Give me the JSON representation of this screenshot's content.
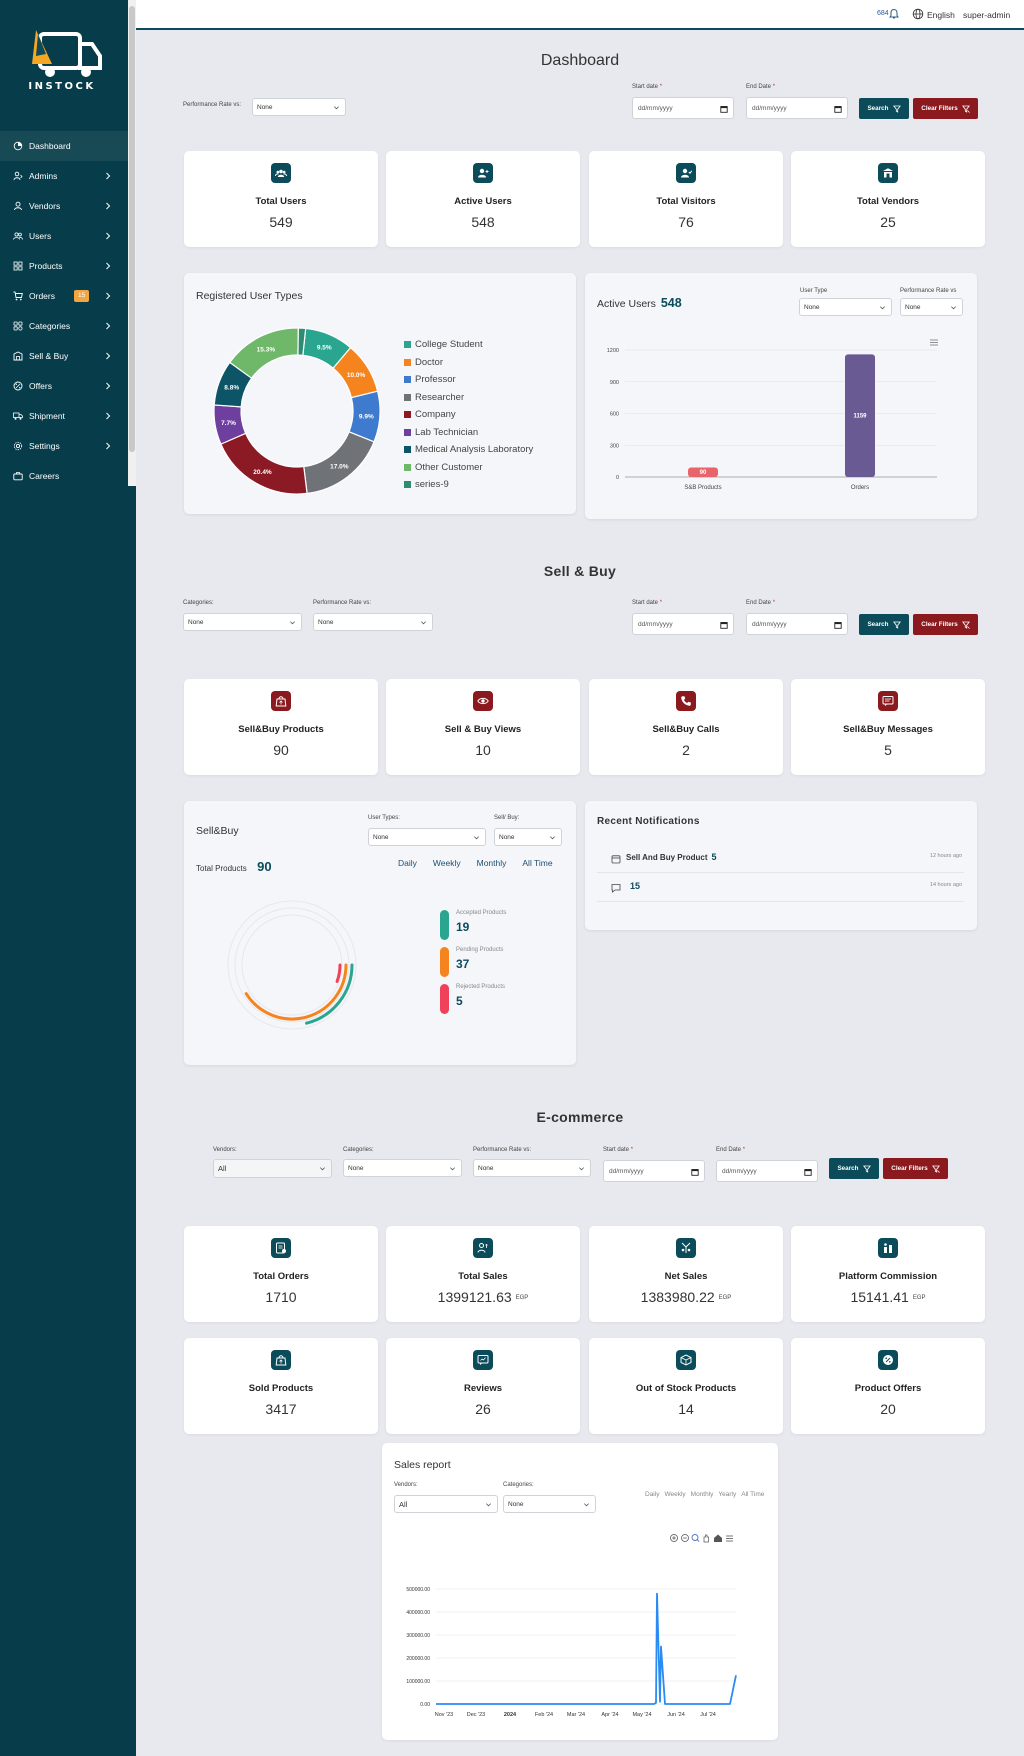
{
  "brand": {
    "name": "INSTOCK"
  },
  "sidebar": {
    "items": [
      {
        "label": "Dashboard",
        "icon": "dashboard-icon",
        "active": true
      },
      {
        "label": "Admins",
        "icon": "admin-icon"
      },
      {
        "label": "Vendors",
        "icon": "vendor-icon"
      },
      {
        "label": "Users",
        "icon": "users-icon"
      },
      {
        "label": "Products",
        "icon": "products-icon"
      },
      {
        "label": "Orders",
        "icon": "cart-icon",
        "badge": "15"
      },
      {
        "label": "Categories",
        "icon": "categories-icon"
      },
      {
        "label": "Sell & Buy",
        "icon": "sellbuy-icon"
      },
      {
        "label": "Offers",
        "icon": "offers-icon"
      },
      {
        "label": "Shipment",
        "icon": "truck-icon"
      },
      {
        "label": "Settings",
        "icon": "gear-icon"
      },
      {
        "label": "Careers",
        "icon": "briefcase-icon"
      }
    ]
  },
  "topbar": {
    "notification_count": "684",
    "language": "English",
    "user": "super-admin"
  },
  "dashboard": {
    "title": "Dashboard",
    "filters": {
      "performance_label": "Performance Rate vs:",
      "performance_value": "None",
      "start_label": "Start date",
      "end_label": "End Date",
      "date_placeholder": "dd/mm/yyyy",
      "search_label": "Search",
      "clear_label": "Clear Filters"
    },
    "stats": [
      {
        "title": "Total Users",
        "value": "549",
        "icon": "users-group-icon"
      },
      {
        "title": "Active Users",
        "value": "548",
        "icon": "user-active-icon"
      },
      {
        "title": "Total Visitors",
        "value": "76",
        "icon": "visitor-icon"
      },
      {
        "title": "Total Vendors",
        "value": "25",
        "icon": "store-icon"
      }
    ],
    "user_types": {
      "title": "Registered User Types",
      "legend": [
        "College Student",
        "Doctor",
        "Professor",
        "Researcher",
        "Company",
        "Lab Technician",
        "Medical Analysis Laboratory",
        "Other Customer",
        "series-9"
      ],
      "colors": [
        "#2aa58f",
        "#f5841f",
        "#3e7bcf",
        "#6f7276",
        "#8b1a24",
        "#6f3fa0",
        "#0d5566",
        "#6fb86a",
        "#2f8c73"
      ]
    },
    "active_users": {
      "title": "Active Users",
      "count": "548",
      "user_type_label": "User Type",
      "user_type_value": "None",
      "perf_label": "Performance Rate vs",
      "perf_value": "None"
    }
  },
  "sellbuy": {
    "title": "Sell & Buy",
    "filters": {
      "categories_label": "Categories:",
      "categories_value": "None",
      "performance_label": "Performance Rate vs:",
      "performance_value": "None",
      "start_label": "Start date",
      "end_label": "End Date",
      "date_placeholder": "dd/mm/yyyy",
      "search_label": "Search",
      "clear_label": "Clear Filters"
    },
    "stats": [
      {
        "title": "Sell&Buy Products",
        "value": "90",
        "icon": "bag-icon"
      },
      {
        "title": "Sell & Buy Views",
        "value": "10",
        "icon": "eye-icon"
      },
      {
        "title": "Sell&Buy Calls",
        "value": "2",
        "icon": "phone-icon"
      },
      {
        "title": "Sell&Buy Messages",
        "value": "5",
        "icon": "message-icon"
      }
    ],
    "panel": {
      "title": "Sell&Buy",
      "total_label": "Total Products",
      "total_value": "90",
      "user_types_label": "User Types:",
      "user_types_value": "None",
      "sellbuy_label": "Sell/ Buy:",
      "sellbuy_value": "None",
      "tabs": [
        "Daily",
        "Weekly",
        "Monthly",
        "All Time"
      ],
      "active_tab": "All Time",
      "items": [
        {
          "label": "Accepted Products",
          "value": "19",
          "color": "#2aa58f"
        },
        {
          "label": "Pending Products",
          "value": "37",
          "color": "#f5841f"
        },
        {
          "label": "Rejected Products",
          "value": "5",
          "color": "#f0415b"
        }
      ]
    },
    "notifications": {
      "title": "Recent Notifications",
      "items": [
        {
          "text": "Sell And Buy Product",
          "count": "5",
          "time": "12 hours ago",
          "icon": "calendar-icon"
        },
        {
          "text": "",
          "count": "15",
          "time": "14 hours ago",
          "icon": "chat-icon"
        }
      ]
    }
  },
  "ecommerce": {
    "title": "E-commerce",
    "filters": {
      "vendors_label": "Vendors:",
      "vendors_value": "All",
      "categories_label": "Categories:",
      "categories_value": "None",
      "performance_label": "Performance Rate vs:",
      "performance_value": "None",
      "start_label": "Start date",
      "end_label": "End Date",
      "date_placeholder": "dd/mm/yyyy",
      "search_label": "Search",
      "clear_label": "Clear Filters"
    },
    "stats": [
      {
        "title": "Total Orders",
        "value": "1710",
        "unit": "",
        "icon": "orders-icon"
      },
      {
        "title": "Total Sales",
        "value": "1399121.63",
        "unit": "EGP",
        "icon": "sales-icon"
      },
      {
        "title": "Net Sales",
        "value": "1383980.22",
        "unit": "EGP",
        "icon": "net-sales-icon"
      },
      {
        "title": "Platform Commission",
        "value": "15141.41",
        "unit": "EGP",
        "icon": "commission-icon"
      },
      {
        "title": "Sold Products",
        "value": "3417",
        "unit": "",
        "icon": "bag-icon"
      },
      {
        "title": "Reviews",
        "value": "26",
        "unit": "",
        "icon": "review-icon"
      },
      {
        "title": "Out of Stock Products",
        "value": "14",
        "unit": "",
        "icon": "box-icon"
      },
      {
        "title": "Product Offers",
        "value": "20",
        "unit": "",
        "icon": "percent-icon"
      }
    ],
    "sales_report": {
      "title": "Sales report",
      "vendors_label": "Vendors:",
      "vendors_value": "All",
      "categories_label": "Categories:",
      "categories_value": "None",
      "tabs": [
        "Daily",
        "Weekly",
        "Monthly",
        "Yearly",
        "All Time"
      ]
    }
  },
  "chart_data": [
    {
      "type": "pie",
      "title": "Registered User Types",
      "categories": [
        "College Student",
        "Doctor",
        "Professor",
        "Researcher",
        "Company",
        "Lab Technician",
        "Medical Analysis Laboratory",
        "Other Customer",
        "series-9"
      ],
      "values": [
        9.5,
        10.0,
        9.9,
        17.0,
        20.4,
        7.7,
        8.8,
        15.3,
        1.4
      ],
      "value_labels": [
        "9.5%",
        "10.0%",
        "9.9%",
        "17.0%",
        "20.4%",
        "7.7%",
        "8.8%",
        "15.3%",
        ""
      ]
    },
    {
      "type": "bar",
      "title": "Active Users",
      "categories": [
        "S&B Products",
        "Orders"
      ],
      "values": [
        90,
        1159
      ],
      "colors": [
        "#e8646b",
        "#6a5a93"
      ],
      "ylim": [
        0,
        1200
      ],
      "yticks": [
        "0",
        "300",
        "600",
        "900",
        "1200"
      ]
    },
    {
      "type": "radial",
      "title": "Sell&Buy",
      "categories": [
        "Accepted Products",
        "Pending Products",
        "Rejected Products"
      ],
      "values": [
        19,
        37,
        5
      ],
      "total": 90
    },
    {
      "type": "line",
      "title": "Sales report",
      "ylim": [
        0,
        500000
      ],
      "yticks": [
        "0.00",
        "100000.00",
        "200000.00",
        "300000.00",
        "400000.00",
        "500000.00"
      ],
      "xticks": [
        "Nov '23",
        "Dec '23",
        "2024",
        "Feb '24",
        "Mar '24",
        "Apr '24",
        "May '24",
        "Jun '24",
        "Jul '24"
      ],
      "x": [
        "Nov '23",
        "Dec '23",
        "2024",
        "Feb '24",
        "Mar '24",
        "Apr '24",
        "Early May '24",
        "Mid May '24",
        "Late May '24",
        "Late May '24",
        "Late May '24",
        "Early Jun '24",
        "Jun '24",
        "Jul '24",
        "Late Jul '24",
        "Late Jul '24"
      ],
      "y": [
        0,
        0,
        0,
        0,
        0,
        0,
        0,
        5000,
        480000,
        10000,
        250000,
        0,
        0,
        0,
        0,
        125000
      ]
    }
  ]
}
